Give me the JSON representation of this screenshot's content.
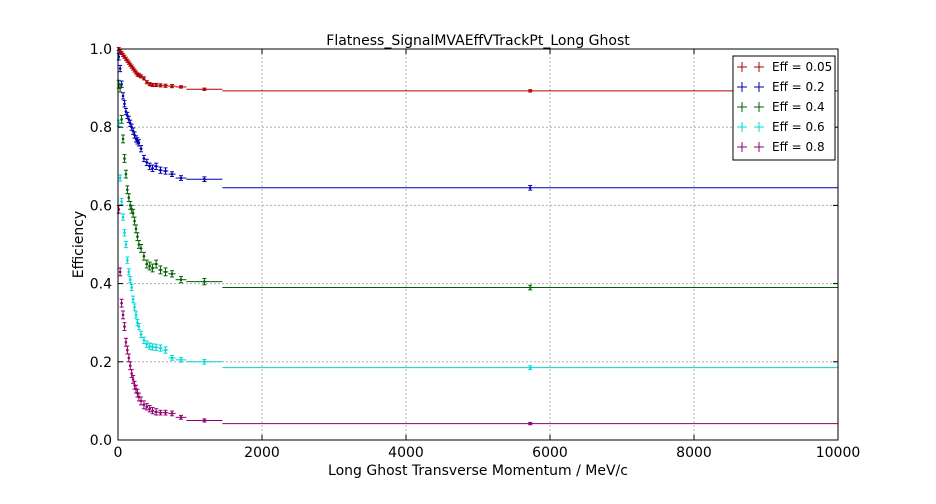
{
  "chart_data": {
    "type": "line",
    "title": "Flatness_SignalMVAEffVTrackPt_Long Ghost",
    "xlabel": "Long Ghost Transverse Momentum / MeV/c",
    "ylabel": "Efficiency",
    "xlim": [
      0,
      10000
    ],
    "ylim": [
      0.0,
      1.0
    ],
    "xticks": [
      "0",
      "2000",
      "4000",
      "6000",
      "8000",
      "10000"
    ],
    "yticks": [
      "0.0",
      "0.2",
      "0.4",
      "0.6",
      "0.8",
      "1.0"
    ],
    "grid": true,
    "legend_position": "top-right",
    "bin_edges": [
      0,
      20,
      40,
      60,
      80,
      100,
      120,
      140,
      160,
      180,
      200,
      220,
      240,
      260,
      280,
      300,
      340,
      380,
      420,
      460,
      500,
      560,
      620,
      700,
      800,
      950,
      1450,
      10000
    ],
    "series": [
      {
        "name": "Eff = 0.05",
        "color": "#b00000",
        "values": [
          1.0,
          0.995,
          0.99,
          0.985,
          0.98,
          0.975,
          0.97,
          0.965,
          0.96,
          0.955,
          0.95,
          0.945,
          0.94,
          0.935,
          0.933,
          0.93,
          0.925,
          0.915,
          0.91,
          0.908,
          0.908,
          0.907,
          0.906,
          0.905,
          0.903,
          0.897,
          0.893
        ],
        "errors": [
          0.004,
          0.004,
          0.004,
          0.004,
          0.004,
          0.004,
          0.004,
          0.004,
          0.004,
          0.004,
          0.004,
          0.004,
          0.004,
          0.004,
          0.004,
          0.004,
          0.004,
          0.004,
          0.004,
          0.004,
          0.004,
          0.004,
          0.004,
          0.004,
          0.003,
          0.003,
          0.003
        ]
      },
      {
        "name": "Eff = 0.2",
        "color": "#0000b0",
        "values": [
          0.98,
          0.95,
          0.91,
          0.88,
          0.86,
          0.84,
          0.83,
          0.82,
          0.81,
          0.8,
          0.79,
          0.78,
          0.77,
          0.765,
          0.76,
          0.745,
          0.72,
          0.71,
          0.7,
          0.695,
          0.7,
          0.69,
          0.688,
          0.68,
          0.67,
          0.667,
          0.645
        ],
        "errors": [
          0.008,
          0.008,
          0.008,
          0.008,
          0.008,
          0.008,
          0.008,
          0.008,
          0.008,
          0.008,
          0.008,
          0.008,
          0.008,
          0.008,
          0.008,
          0.008,
          0.008,
          0.008,
          0.008,
          0.008,
          0.008,
          0.008,
          0.008,
          0.006,
          0.006,
          0.006,
          0.006
        ]
      },
      {
        "name": "Eff = 0.4",
        "color": "#006000",
        "values": [
          0.91,
          0.9,
          0.82,
          0.77,
          0.72,
          0.68,
          0.64,
          0.62,
          0.6,
          0.59,
          0.58,
          0.56,
          0.54,
          0.52,
          0.5,
          0.49,
          0.47,
          0.45,
          0.445,
          0.44,
          0.45,
          0.435,
          0.43,
          0.425,
          0.41,
          0.405,
          0.39
        ],
        "errors": [
          0.01,
          0.01,
          0.01,
          0.01,
          0.01,
          0.01,
          0.01,
          0.01,
          0.01,
          0.01,
          0.01,
          0.01,
          0.01,
          0.01,
          0.01,
          0.01,
          0.01,
          0.01,
          0.01,
          0.01,
          0.01,
          0.01,
          0.01,
          0.008,
          0.008,
          0.008,
          0.006
        ]
      },
      {
        "name": "Eff = 0.6",
        "color": "#00d8d8",
        "values": [
          0.81,
          0.67,
          0.61,
          0.57,
          0.53,
          0.5,
          0.46,
          0.43,
          0.41,
          0.39,
          0.36,
          0.34,
          0.32,
          0.3,
          0.29,
          0.27,
          0.255,
          0.245,
          0.24,
          0.238,
          0.237,
          0.235,
          0.23,
          0.21,
          0.205,
          0.2,
          0.185
        ],
        "errors": [
          0.008,
          0.008,
          0.008,
          0.008,
          0.008,
          0.008,
          0.008,
          0.008,
          0.008,
          0.008,
          0.008,
          0.008,
          0.008,
          0.008,
          0.008,
          0.008,
          0.008,
          0.008,
          0.008,
          0.008,
          0.008,
          0.008,
          0.008,
          0.006,
          0.006,
          0.006,
          0.005
        ]
      },
      {
        "name": "Eff = 0.8",
        "color": "#900070",
        "values": [
          0.59,
          0.43,
          0.35,
          0.32,
          0.29,
          0.25,
          0.23,
          0.21,
          0.19,
          0.17,
          0.155,
          0.14,
          0.13,
          0.12,
          0.11,
          0.1,
          0.09,
          0.085,
          0.08,
          0.075,
          0.072,
          0.07,
          0.07,
          0.068,
          0.058,
          0.05,
          0.042
        ],
        "errors": [
          0.01,
          0.01,
          0.01,
          0.01,
          0.01,
          0.01,
          0.01,
          0.01,
          0.01,
          0.01,
          0.01,
          0.01,
          0.01,
          0.01,
          0.01,
          0.01,
          0.01,
          0.008,
          0.008,
          0.008,
          0.008,
          0.006,
          0.006,
          0.006,
          0.005,
          0.004,
          0.003
        ]
      }
    ]
  }
}
